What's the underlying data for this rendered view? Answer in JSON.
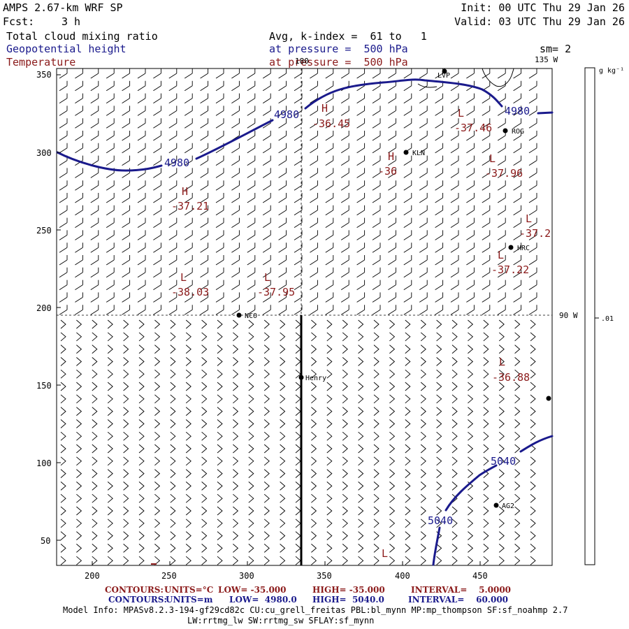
{
  "header": {
    "model": "AMPS 2.67-km WRF SP",
    "fcst_label": "Fcst:",
    "fcst_value": "3 h",
    "init": "Init: 00 UTC Thu 29 Jan 26",
    "valid": "Valid: 03 UTC Thu 29 Jan 26",
    "field1": "Total cloud mixing ratio",
    "field2": "Geopotential height",
    "field3": "Temperature",
    "avg": "Avg, k-index =  61 to   1",
    "pressure_blue": "at pressure =  500 hPa",
    "pressure_red": "at pressure =  500 hPa",
    "sm": "sm= 2"
  },
  "axes": {
    "x_ticks": [
      "200",
      "250",
      "300",
      "350",
      "400",
      "450"
    ],
    "y_ticks": [
      "350",
      "300",
      "250",
      "200",
      "150",
      "100",
      "50"
    ]
  },
  "lon_labels": {
    "top_180": "180",
    "top_135w": "135 W",
    "right_90w": "90 W"
  },
  "colorbar": {
    "unit": "g kg⁻¹",
    "tick": ".01"
  },
  "stations": [
    {
      "name": "LVP"
    },
    {
      "name": "ROG"
    },
    {
      "name": "KLN"
    },
    {
      "name": "HRC"
    },
    {
      "name": "NCO"
    },
    {
      "name": "Henry"
    },
    {
      "name": "AG2"
    },
    {
      "name": ""
    }
  ],
  "height_labels": [
    "4980",
    "4980",
    "4980",
    "5040",
    "5040"
  ],
  "extrema": [
    {
      "kind": "H",
      "value": "-36.45"
    },
    {
      "kind": "L",
      "value": "-37.46"
    },
    {
      "kind": "H",
      "value": "-36"
    },
    {
      "kind": "L",
      "value": "-37.96"
    },
    {
      "kind": "H",
      "value": "-37.21"
    },
    {
      "kind": "L",
      "value": "-37.2"
    },
    {
      "kind": "L",
      "value": "-37.22"
    },
    {
      "kind": "L",
      "value": "-38.03"
    },
    {
      "kind": "L",
      "value": "-37.95"
    },
    {
      "kind": "L",
      "value": "-36.88"
    },
    {
      "kind": "L",
      "value": ""
    }
  ],
  "footer": {
    "c1_label": "CONTOURS:",
    "c1_units": "UNITS=°C",
    "c1_low": "LOW= -35.000",
    "c1_high": "HIGH= -35.000",
    "c1_interval": "INTERVAL=    5.0000",
    "c2_label": "CONTOURS:",
    "c2_units": "UNITS=m",
    "c2_low": "LOW=  4980.0",
    "c2_high": "HIGH=  5040.0",
    "c2_interval": "INTERVAL=    60.000",
    "model_info1": "Model Info: MPASv8.2.3-194-gf29cd82c CU:cu_grell_freitas PBL:bl_mynn MP:mp_thompson SF:sf_noahmp 2.7",
    "model_info2": "LW:rrtmg_lw SW:rrtmg_sw SFLAY:sf_mynn"
  },
  "colors": {
    "height": "#1a1a8c",
    "temperature": "#8b1a1a"
  }
}
